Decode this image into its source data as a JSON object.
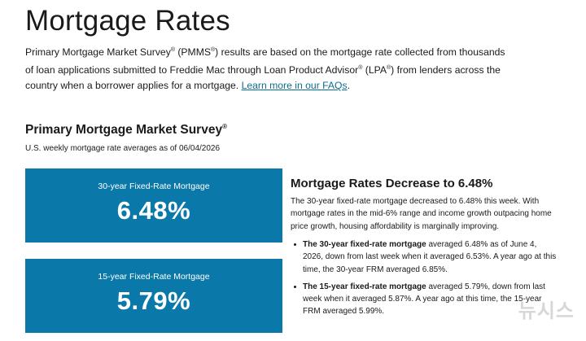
{
  "header": {
    "title": "Mortgage Rates"
  },
  "intro": {
    "text_1": "Primary Mortgage Market Survey",
    "reg_1": "®",
    "text_2": " (PMMS",
    "reg_2": "®",
    "text_3": ") results are based on the mortgage rate collected from thousands of loan applications submitted to Freddie Mac through Loan Product Advisor",
    "reg_3": "®",
    "text_4": " (LPA",
    "reg_4": "®",
    "text_5": ") from lenders across the country when a borrower applies for a mortgage. ",
    "faq_link": "Learn more in our FAQs",
    "end": "."
  },
  "survey": {
    "title": "Primary Mortgage Market Survey",
    "title_reg": "®",
    "as_of": "U.S. weekly mortgage rate averages as of 06/04/2026"
  },
  "cards": [
    {
      "label": "30-year Fixed-Rate Mortgage",
      "value": "6.48%"
    },
    {
      "label": "15-year Fixed-Rate Mortgage",
      "value": "5.79%"
    }
  ],
  "summary": {
    "title": "Mortgage Rates Decrease to 6.48%",
    "text": "The 30-year fixed-rate mortgage decreased to 6.48% this week. With mortgage rates in the mid-6% range and income growth outpacing home price growth, housing affordability is marginally improving.",
    "bullets": [
      {
        "bold": "The 30-year fixed-rate mortgage",
        "rest": " averaged 6.48% as of June 4, 2026, down from last week when it averaged 6.53%. A year ago at this time, the 30-year FRM averaged 6.85%."
      },
      {
        "bold": "The 15-year fixed-rate mortgage",
        "rest": " averaged 5.79%, down from last week when it averaged 5.87%. A year ago at this time, the 15-year FRM averaged 5.99%."
      }
    ]
  },
  "watermark": "뉴시스"
}
